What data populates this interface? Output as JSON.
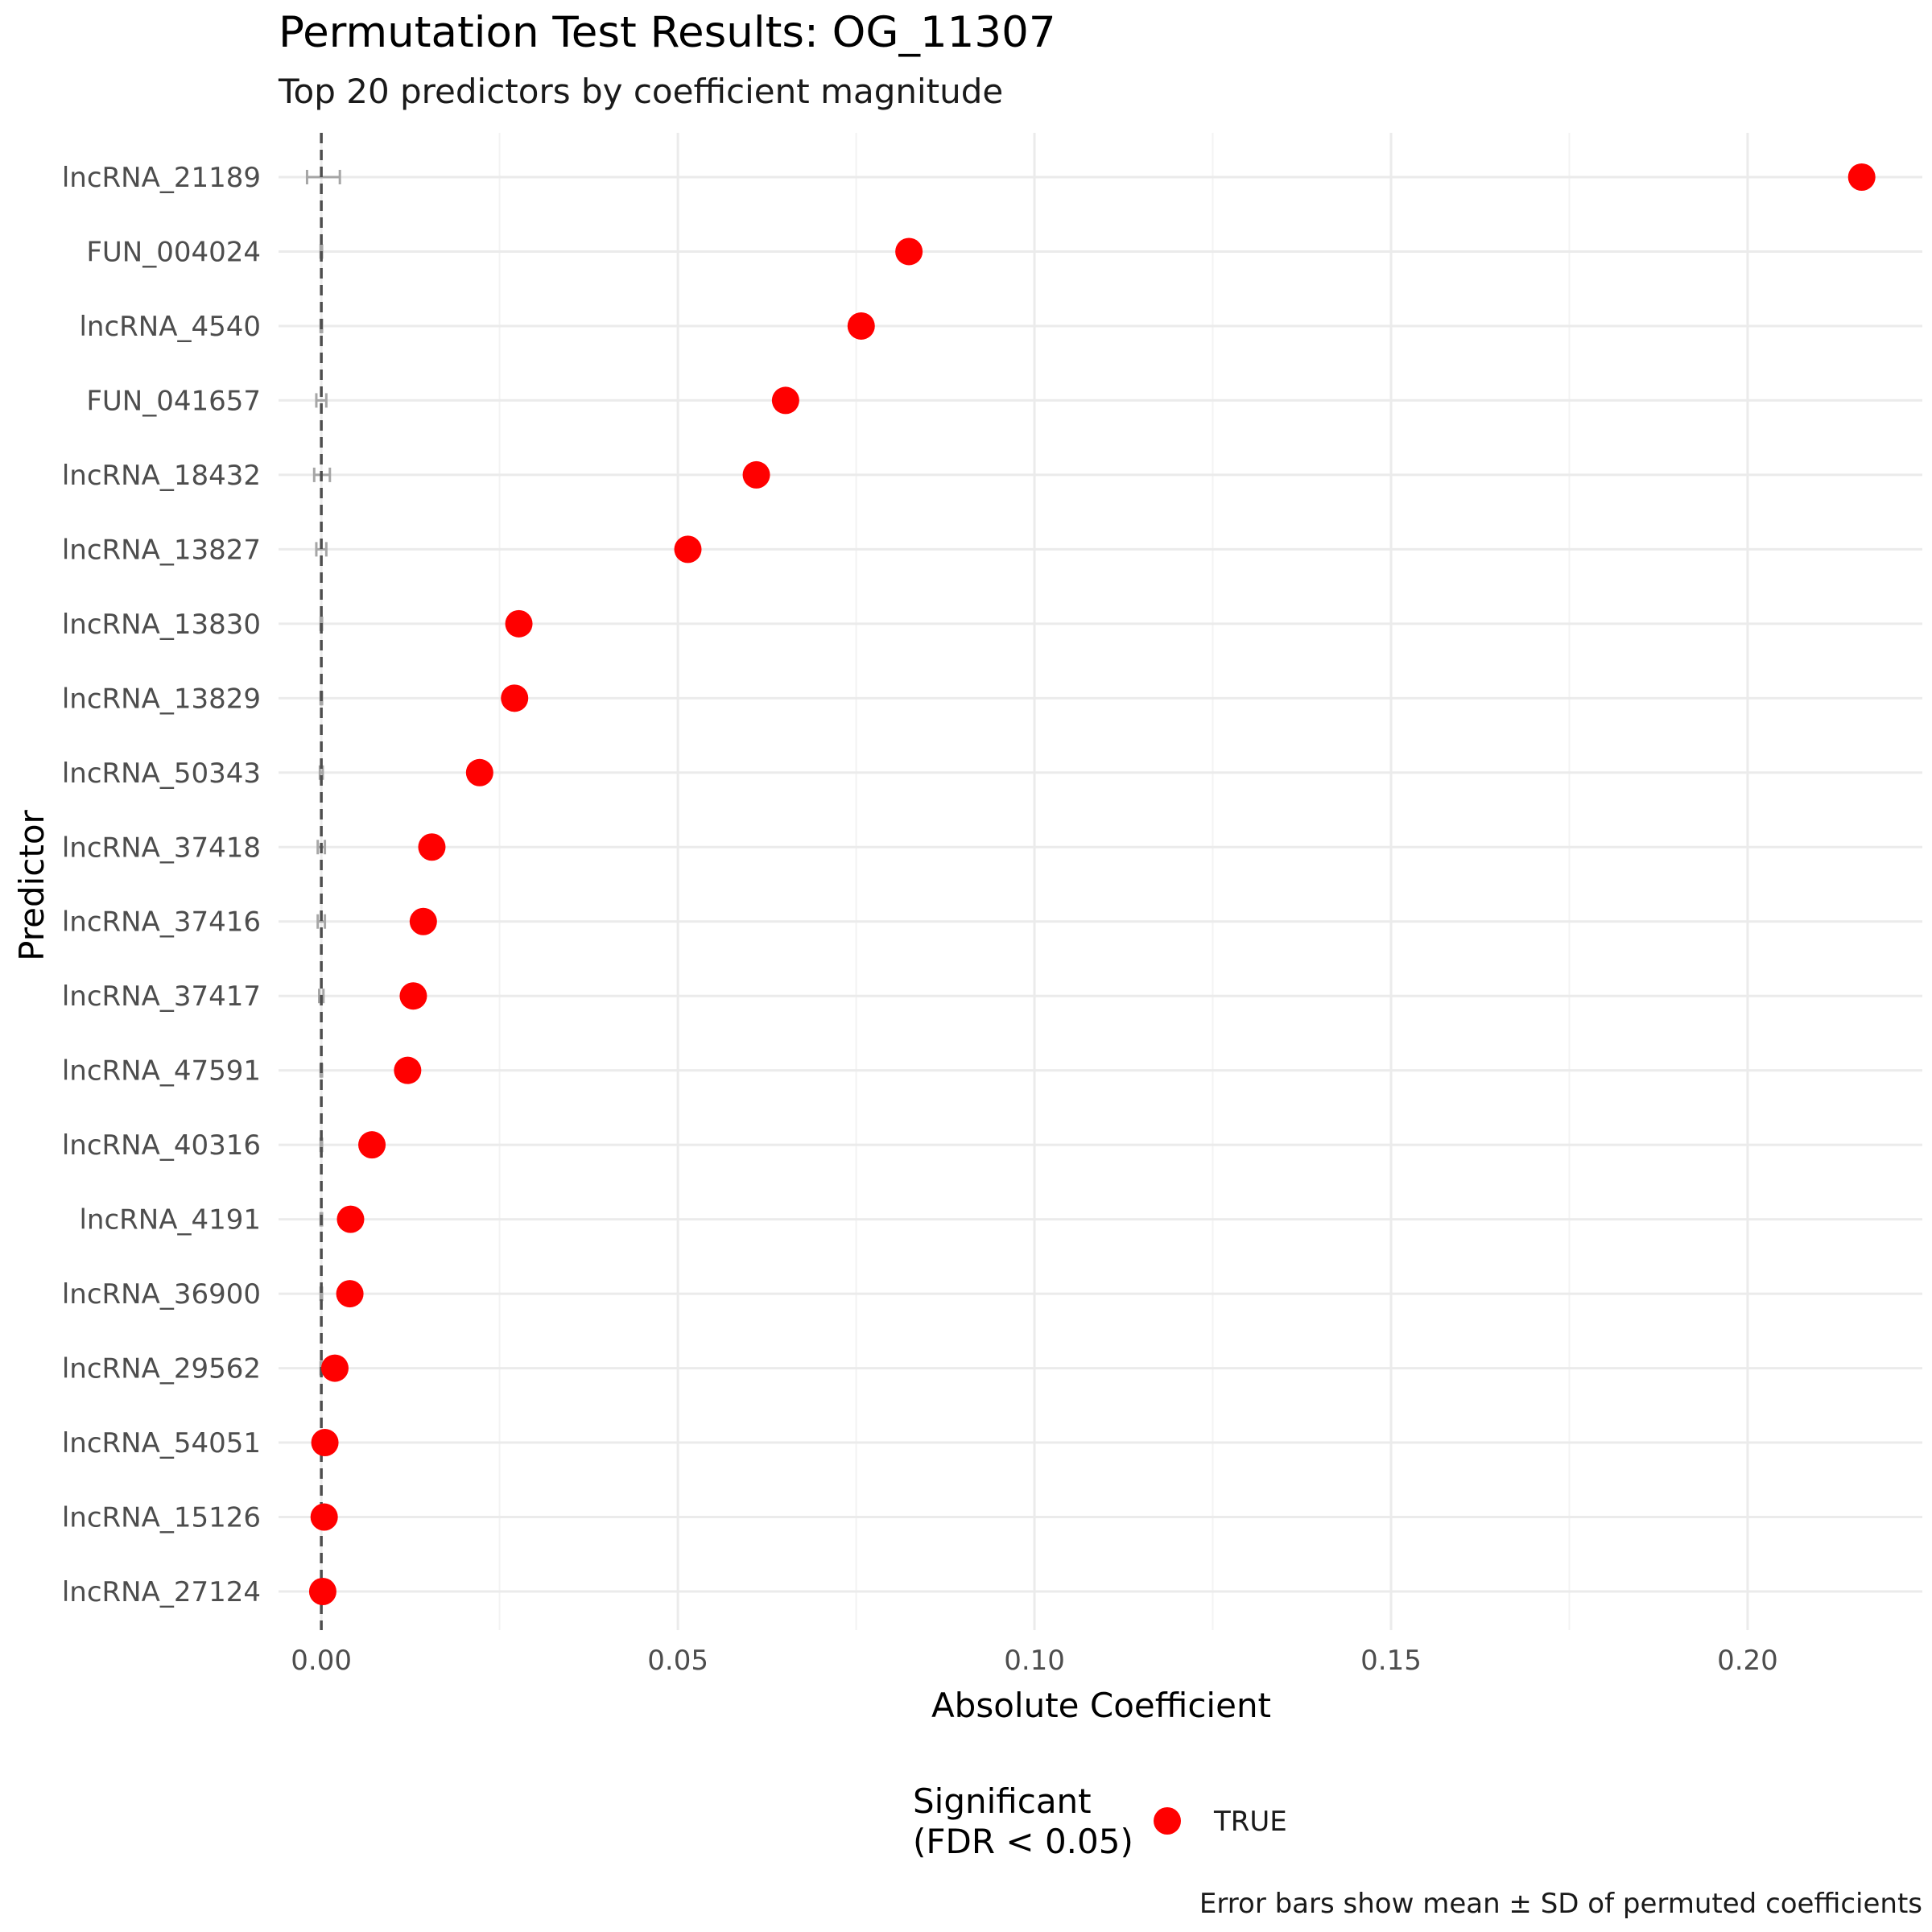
{
  "chart_data": {
    "type": "scatter",
    "title": "Permutation Test Results: OG_11307",
    "subtitle": "Top 20 predictors by coefficient magnitude",
    "xlabel": "Absolute Coefficient",
    "ylabel": "Predictor",
    "xlim": [
      -0.006,
      0.2245
    ],
    "x_ticks": [
      0.0,
      0.05,
      0.1,
      0.15,
      0.2
    ],
    "x_tick_labels": [
      "0.00",
      "0.05",
      "0.10",
      "0.15",
      "0.20"
    ],
    "grid": true,
    "reference_line": {
      "x": 0,
      "style": "dashed"
    },
    "categories": [
      "lncRNA_21189",
      "FUN_004024",
      "lncRNA_4540",
      "FUN_041657",
      "lncRNA_18432",
      "lncRNA_13827",
      "lncRNA_13830",
      "lncRNA_13829",
      "lncRNA_50343",
      "lncRNA_37418",
      "lncRNA_37416",
      "lncRNA_37417",
      "lncRNA_47591",
      "lncRNA_40316",
      "lncRNA_4191",
      "lncRNA_36900",
      "lncRNA_29562",
      "lncRNA_54051",
      "lncRNA_15126",
      "lncRNA_27124"
    ],
    "values": [
      0.216,
      0.0824,
      0.0757,
      0.0651,
      0.061,
      0.0514,
      0.0277,
      0.0271,
      0.0222,
      0.0155,
      0.0143,
      0.0129,
      0.0121,
      0.0071,
      0.0041,
      0.004,
      0.0019,
      0.0005,
      0.0004,
      0.0002
    ],
    "significant": [
      true,
      true,
      true,
      true,
      true,
      true,
      true,
      true,
      true,
      true,
      true,
      true,
      true,
      true,
      true,
      true,
      true,
      true,
      true,
      true
    ],
    "permuted_mean": [
      0.0003,
      0,
      0,
      0,
      0.0001,
      0,
      0,
      0,
      0,
      0,
      0,
      0,
      0,
      0,
      0,
      0,
      0,
      0,
      0,
      0
    ],
    "permuted_sd": [
      0.0023,
      0.0001,
      0.0001,
      0.0007,
      0.0011,
      0.0007,
      0.0001,
      0.0001,
      0.0002,
      0.0005,
      0.0005,
      0.0003,
      0.0001,
      0.0001,
      0.0001,
      0.0001,
      0.0001,
      0.0001,
      0.0001,
      0.0001
    ],
    "point_color": "#ff0000",
    "errorbar_color": "#a6a6a6",
    "legend": {
      "title_line1": "Significant",
      "title_line2": "(FDR < 0.05)",
      "entries": [
        {
          "label": "TRUE",
          "color": "#ff0000"
        }
      ],
      "position": "bottom"
    },
    "caption": "Error bars show mean ± SD of permuted coefficients"
  }
}
